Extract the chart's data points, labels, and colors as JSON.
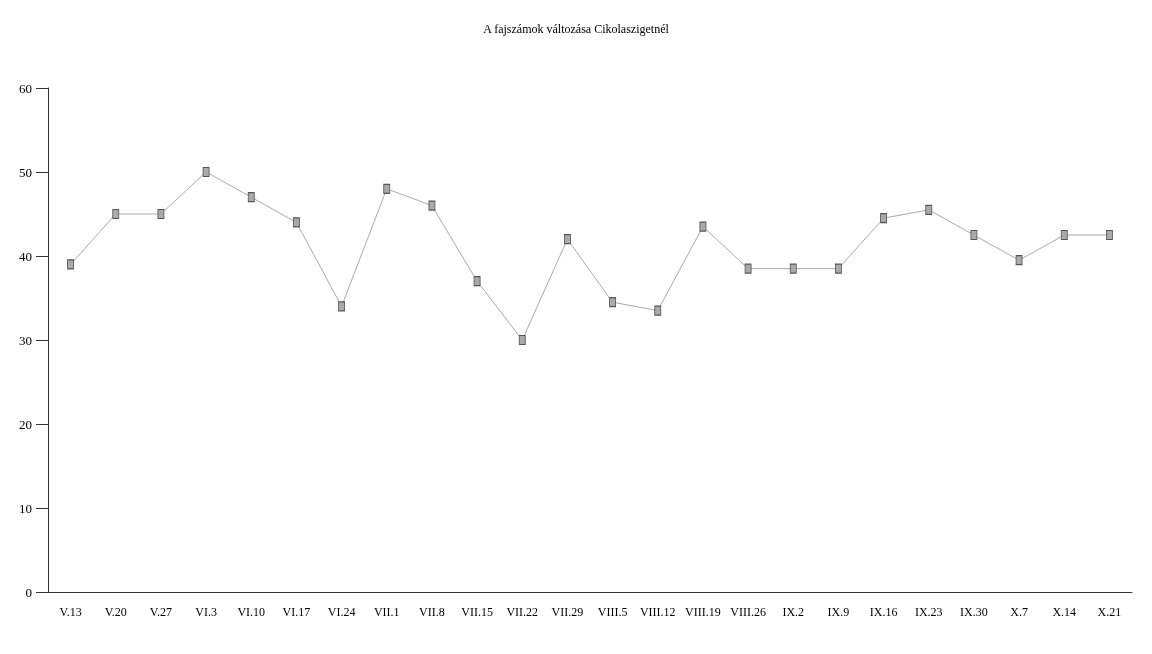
{
  "chart_data": {
    "type": "line",
    "title": "A fajszámok változása Cikolaszigetnél",
    "categories": [
      "V.13",
      "V.20",
      "V.27",
      "VI.3",
      "VI.10",
      "VI.17",
      "VI.24",
      "VII.1",
      "VII.8",
      "VII.15",
      "VII.22",
      "VII.29",
      "VIII.5",
      "VIII.12",
      "VIII.19",
      "VIII.26",
      "IX.2",
      "IX.9",
      "IX.16",
      "IX.23",
      "IX.30",
      "X.7",
      "X.14",
      "X.21"
    ],
    "series": [
      {
        "color": "#aaaaaa",
        "values": [
          39,
          45,
          45,
          50,
          47,
          44,
          34,
          48,
          46,
          37,
          30,
          42,
          34.5,
          33.5,
          43.5,
          38.5,
          38.5,
          38.5,
          44.5,
          45.5,
          42.5,
          39.5,
          42.5,
          42.5
        ]
      }
    ],
    "ylim": [
      0,
      60
    ],
    "yticks": [
      0,
      10,
      20,
      30,
      40,
      50,
      60
    ],
    "grid": false,
    "marker": "square",
    "line_style": "solid"
  }
}
